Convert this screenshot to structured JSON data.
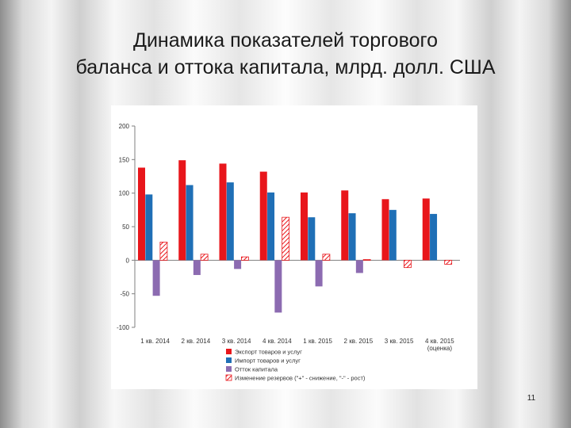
{
  "slide": {
    "title_line1": "Динамика показателей торгового",
    "title_line2": "баланса и оттока капитала, млрд. долл. США",
    "page_number": "11"
  },
  "chart_data": {
    "type": "bar",
    "categories": [
      "1 кв. 2014",
      "2 кв. 2014",
      "3 кв. 2014",
      "4 кв. 2014",
      "1 кв. 2015",
      "2 кв. 2015",
      "3 кв. 2015",
      "4 кв. 2015"
    ],
    "category_note": "(оценка)",
    "series": [
      {
        "name": "Экспорт товаров и услуг",
        "color": "#e8161b",
        "pattern": "solid",
        "values": [
          138,
          149,
          144,
          132,
          101,
          104,
          91,
          92
        ]
      },
      {
        "name": "Импорт товаров и услуг",
        "color": "#1f6fb6",
        "pattern": "solid",
        "values": [
          98,
          112,
          116,
          101,
          64,
          70,
          75,
          69
        ]
      },
      {
        "name": "Отток капитала",
        "color": "#8c6bb1",
        "pattern": "solid",
        "values": [
          -53,
          -22,
          -13,
          -78,
          -39,
          -19,
          0,
          0
        ]
      },
      {
        "name": "Изменение резервов (\"+\" - снижение, \"-\" - рост)",
        "color": "#e8161b",
        "pattern": "hatched",
        "values": [
          27,
          9,
          5,
          64,
          9,
          1,
          -11,
          -6
        ]
      }
    ],
    "ylim": [
      -100,
      200
    ],
    "yticks": [
      -100,
      -50,
      0,
      50,
      100,
      150,
      200
    ],
    "legend_position": "bottom",
    "grid": false
  }
}
